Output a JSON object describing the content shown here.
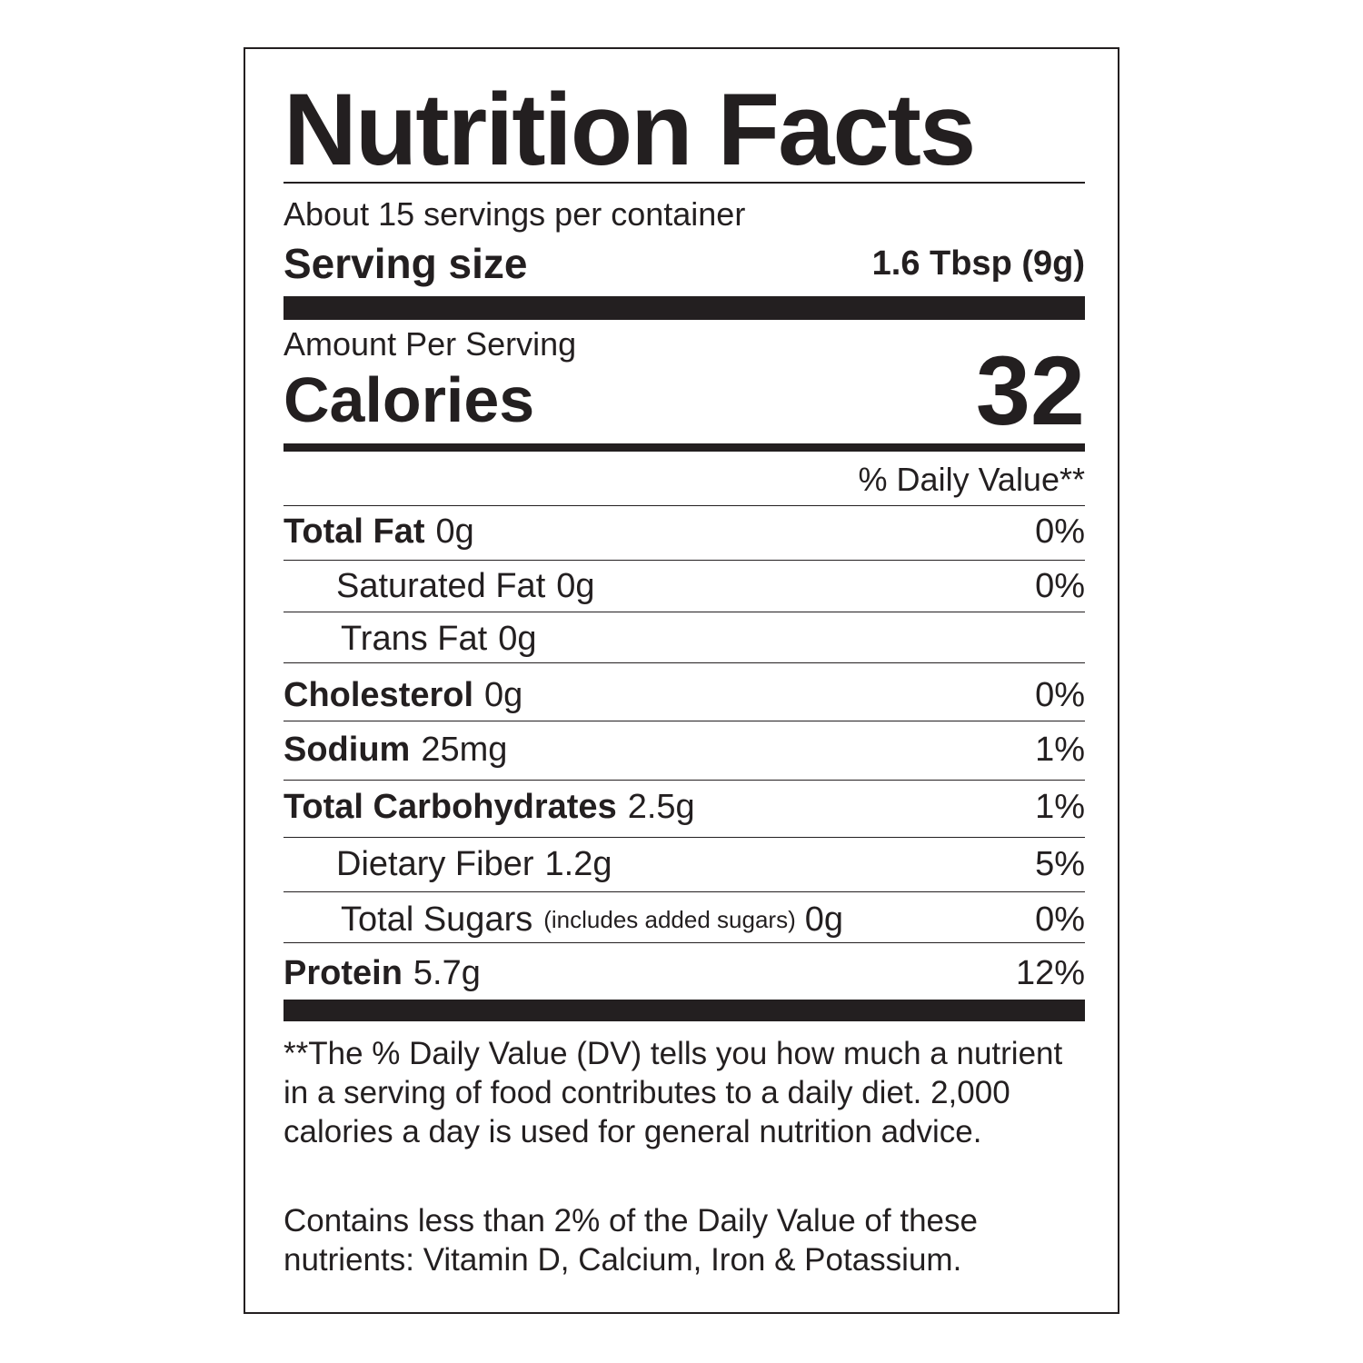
{
  "title": "Nutrition Facts",
  "servings": "About 15 servings per container",
  "serving_size": {
    "label": "Serving size",
    "value": "1.6 Tbsp (9g)"
  },
  "amount_per_serving": "Amount Per Serving",
  "calories": {
    "label": "Calories",
    "value": "32"
  },
  "daily_value_header": "% Daily Value**",
  "rows": [
    {
      "name": "Total Fat",
      "amount": "0g",
      "dv": "0%"
    },
    {
      "name": "Saturated Fat",
      "amount": "0g",
      "dv": "0%"
    },
    {
      "name": "Trans Fat",
      "amount": "0g"
    },
    {
      "name": "Cholesterol",
      "amount": "0g",
      "dv": "0%"
    },
    {
      "name": "Sodium",
      "amount": "25mg",
      "dv": "1%"
    },
    {
      "name": "Total Carbohydrates",
      "amount": "2.5g",
      "dv": "1%"
    },
    {
      "name": "Dietary Fiber",
      "amount": "1.2g",
      "dv": "5%"
    },
    {
      "name": "Total Sugars",
      "qualifier": "(includes added sugars)",
      "amount": "0g",
      "dv": "0%"
    },
    {
      "name": "Protein",
      "amount": "5.7g",
      "dv": "12%"
    }
  ],
  "footnote": "**The % Daily Value (DV) tells you how much a nutrient in a serving of food contributes to a daily diet. 2,000 calories a day is used for general nutrition advice.",
  "note": "Contains less than 2% of the Daily Value of these nutrients: Vitamin D, Calcium, Iron & Potassium."
}
